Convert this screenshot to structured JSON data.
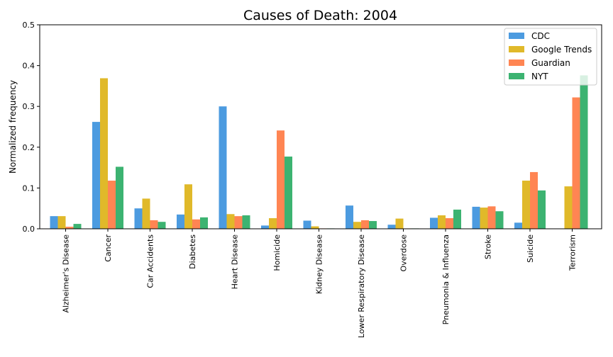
{
  "chart_data": {
    "type": "bar",
    "title": "Causes of Death: 2004",
    "xlabel": "",
    "ylabel": "Normalized frequency",
    "ylim": [
      0,
      0.5
    ],
    "yticks": [
      "0.0",
      "0.1",
      "0.2",
      "0.3",
      "0.4",
      "0.5"
    ],
    "grid": false,
    "legend_position": "top-right",
    "categories": [
      "Alzheimer's Disease",
      "Cancer",
      "Car Accidents",
      "Diabetes",
      "Heart Disease",
      "Homicide",
      "Kidney Disease",
      "Lower Respiratory Disease",
      "Overdose",
      "Pneumonia & Influenza",
      "Stroke",
      "Suicide",
      "Terrorism"
    ],
    "series": [
      {
        "name": "CDC",
        "color": "#4c9be0",
        "values": [
          0.031,
          0.262,
          0.05,
          0.035,
          0.3,
          0.008,
          0.02,
          0.057,
          0.01,
          0.027,
          0.054,
          0.015,
          0.0
        ]
      },
      {
        "name": "Google Trends",
        "color": "#e0b92a",
        "values": [
          0.031,
          0.369,
          0.074,
          0.109,
          0.036,
          0.026,
          0.006,
          0.017,
          0.025,
          0.033,
          0.052,
          0.118,
          0.104
        ]
      },
      {
        "name": "Guardian",
        "color": "#ff8553",
        "values": [
          0.005,
          0.118,
          0.021,
          0.023,
          0.031,
          0.241,
          0.001,
          0.021,
          0.001,
          0.026,
          0.055,
          0.139,
          0.322
        ]
      },
      {
        "name": "NYT",
        "color": "#3cb371",
        "values": [
          0.012,
          0.152,
          0.017,
          0.028,
          0.033,
          0.177,
          0.001,
          0.019,
          0.001,
          0.047,
          0.043,
          0.094,
          0.376
        ]
      }
    ]
  }
}
